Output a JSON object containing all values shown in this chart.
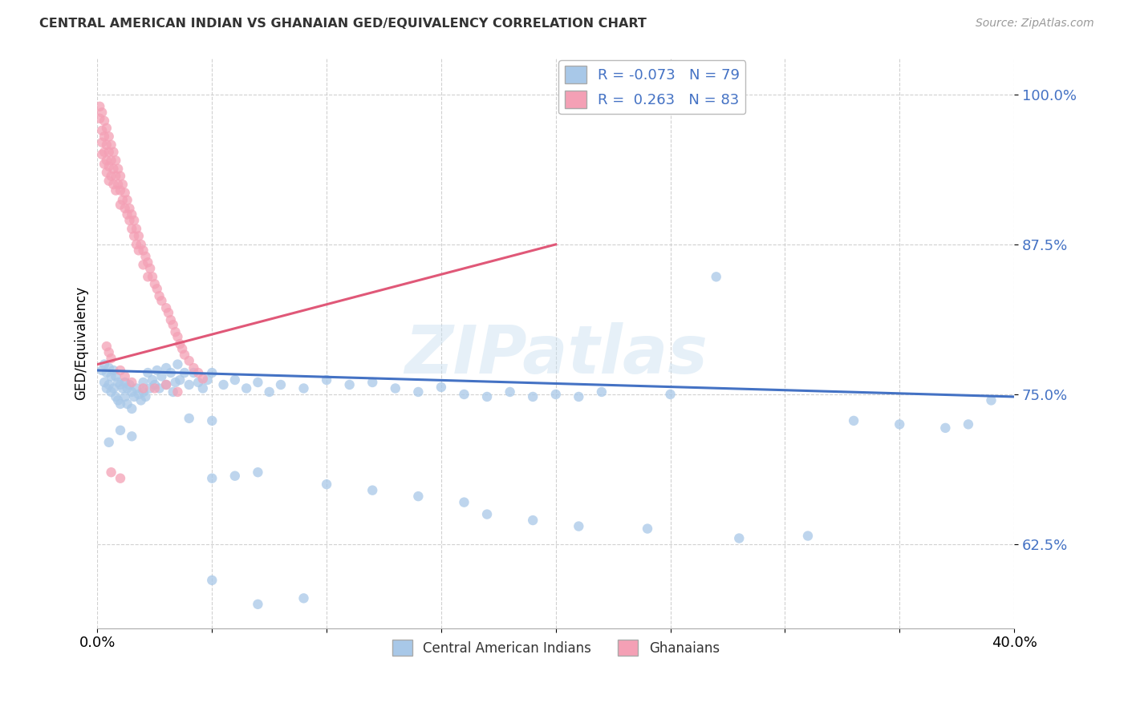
{
  "title": "CENTRAL AMERICAN INDIAN VS GHANAIAN GED/EQUIVALENCY CORRELATION CHART",
  "source": "Source: ZipAtlas.com",
  "ylabel": "GED/Equivalency",
  "xlim": [
    0.0,
    0.4
  ],
  "ylim": [
    0.555,
    1.03
  ],
  "yticks": [
    0.625,
    0.75,
    0.875,
    1.0
  ],
  "ytick_labels": [
    "62.5%",
    "75.0%",
    "87.5%",
    "100.0%"
  ],
  "xticks": [
    0.0,
    0.05,
    0.1,
    0.15,
    0.2,
    0.25,
    0.3,
    0.35,
    0.4
  ],
  "xtick_labels": [
    "0.0%",
    "",
    "",
    "",
    "",
    "",
    "",
    "",
    "40.0%"
  ],
  "blue_R": "-0.073",
  "blue_N": "79",
  "pink_R": "0.263",
  "pink_N": "83",
  "blue_color": "#A8C8E8",
  "pink_color": "#F4A0B5",
  "blue_line_color": "#4472C4",
  "pink_line_color": "#E05878",
  "watermark": "ZIPatlas",
  "legend_label_blue": "Central American Indians",
  "legend_label_pink": "Ghanaians",
  "blue_line_x": [
    0.0,
    0.4
  ],
  "blue_line_y": [
    0.77,
    0.748
  ],
  "pink_line_x": [
    0.0,
    0.2
  ],
  "pink_line_y": [
    0.775,
    0.875
  ],
  "blue_points": [
    [
      0.002,
      0.77
    ],
    [
      0.003,
      0.775
    ],
    [
      0.003,
      0.76
    ],
    [
      0.004,
      0.768
    ],
    [
      0.004,
      0.755
    ],
    [
      0.005,
      0.772
    ],
    [
      0.005,
      0.758
    ],
    [
      0.006,
      0.765
    ],
    [
      0.006,
      0.752
    ],
    [
      0.007,
      0.77
    ],
    [
      0.007,
      0.755
    ],
    [
      0.008,
      0.765
    ],
    [
      0.008,
      0.748
    ],
    [
      0.009,
      0.76
    ],
    [
      0.009,
      0.745
    ],
    [
      0.01,
      0.758
    ],
    [
      0.01,
      0.742
    ],
    [
      0.011,
      0.755
    ],
    [
      0.012,
      0.76
    ],
    [
      0.012,
      0.748
    ],
    [
      0.013,
      0.755
    ],
    [
      0.013,
      0.742
    ],
    [
      0.014,
      0.758
    ],
    [
      0.015,
      0.752
    ],
    [
      0.015,
      0.738
    ],
    [
      0.016,
      0.748
    ],
    [
      0.017,
      0.755
    ],
    [
      0.018,
      0.75
    ],
    [
      0.019,
      0.745
    ],
    [
      0.02,
      0.752
    ],
    [
      0.02,
      0.76
    ],
    [
      0.021,
      0.748
    ],
    [
      0.022,
      0.768
    ],
    [
      0.023,
      0.755
    ],
    [
      0.024,
      0.762
    ],
    [
      0.025,
      0.758
    ],
    [
      0.026,
      0.77
    ],
    [
      0.027,
      0.755
    ],
    [
      0.028,
      0.765
    ],
    [
      0.03,
      0.772
    ],
    [
      0.03,
      0.758
    ],
    [
      0.032,
      0.768
    ],
    [
      0.033,
      0.752
    ],
    [
      0.034,
      0.76
    ],
    [
      0.035,
      0.775
    ],
    [
      0.036,
      0.762
    ],
    [
      0.038,
      0.768
    ],
    [
      0.04,
      0.758
    ],
    [
      0.042,
      0.768
    ],
    [
      0.044,
      0.76
    ],
    [
      0.046,
      0.755
    ],
    [
      0.048,
      0.762
    ],
    [
      0.05,
      0.768
    ],
    [
      0.055,
      0.758
    ],
    [
      0.06,
      0.762
    ],
    [
      0.065,
      0.755
    ],
    [
      0.07,
      0.76
    ],
    [
      0.075,
      0.752
    ],
    [
      0.08,
      0.758
    ],
    [
      0.09,
      0.755
    ],
    [
      0.1,
      0.762
    ],
    [
      0.11,
      0.758
    ],
    [
      0.12,
      0.76
    ],
    [
      0.13,
      0.755
    ],
    [
      0.14,
      0.752
    ],
    [
      0.15,
      0.756
    ],
    [
      0.16,
      0.75
    ],
    [
      0.17,
      0.748
    ],
    [
      0.18,
      0.752
    ],
    [
      0.19,
      0.748
    ],
    [
      0.2,
      0.75
    ],
    [
      0.21,
      0.748
    ],
    [
      0.22,
      0.752
    ],
    [
      0.25,
      0.75
    ],
    [
      0.27,
      0.848
    ],
    [
      0.005,
      0.71
    ],
    [
      0.01,
      0.72
    ],
    [
      0.015,
      0.715
    ],
    [
      0.04,
      0.73
    ],
    [
      0.05,
      0.728
    ],
    [
      0.05,
      0.68
    ],
    [
      0.06,
      0.682
    ],
    [
      0.07,
      0.685
    ],
    [
      0.1,
      0.675
    ],
    [
      0.12,
      0.67
    ],
    [
      0.14,
      0.665
    ],
    [
      0.16,
      0.66
    ],
    [
      0.17,
      0.65
    ],
    [
      0.19,
      0.645
    ],
    [
      0.21,
      0.64
    ],
    [
      0.24,
      0.638
    ],
    [
      0.28,
      0.63
    ],
    [
      0.31,
      0.632
    ],
    [
      0.33,
      0.728
    ],
    [
      0.35,
      0.725
    ],
    [
      0.37,
      0.722
    ],
    [
      0.38,
      0.725
    ],
    [
      0.39,
      0.745
    ],
    [
      0.05,
      0.595
    ],
    [
      0.07,
      0.575
    ],
    [
      0.09,
      0.58
    ]
  ],
  "pink_points": [
    [
      0.001,
      0.98
    ],
    [
      0.001,
      0.99
    ],
    [
      0.002,
      0.985
    ],
    [
      0.002,
      0.97
    ],
    [
      0.002,
      0.96
    ],
    [
      0.002,
      0.95
    ],
    [
      0.003,
      0.978
    ],
    [
      0.003,
      0.965
    ],
    [
      0.003,
      0.952
    ],
    [
      0.003,
      0.942
    ],
    [
      0.004,
      0.972
    ],
    [
      0.004,
      0.958
    ],
    [
      0.004,
      0.945
    ],
    [
      0.004,
      0.935
    ],
    [
      0.005,
      0.965
    ],
    [
      0.005,
      0.952
    ],
    [
      0.005,
      0.94
    ],
    [
      0.005,
      0.928
    ],
    [
      0.006,
      0.958
    ],
    [
      0.006,
      0.945
    ],
    [
      0.006,
      0.932
    ],
    [
      0.007,
      0.952
    ],
    [
      0.007,
      0.938
    ],
    [
      0.007,
      0.925
    ],
    [
      0.008,
      0.945
    ],
    [
      0.008,
      0.932
    ],
    [
      0.008,
      0.92
    ],
    [
      0.009,
      0.938
    ],
    [
      0.009,
      0.925
    ],
    [
      0.01,
      0.932
    ],
    [
      0.01,
      0.92
    ],
    [
      0.01,
      0.908
    ],
    [
      0.011,
      0.925
    ],
    [
      0.011,
      0.912
    ],
    [
      0.012,
      0.918
    ],
    [
      0.012,
      0.905
    ],
    [
      0.013,
      0.912
    ],
    [
      0.013,
      0.9
    ],
    [
      0.014,
      0.905
    ],
    [
      0.014,
      0.895
    ],
    [
      0.015,
      0.9
    ],
    [
      0.015,
      0.888
    ],
    [
      0.016,
      0.895
    ],
    [
      0.016,
      0.882
    ],
    [
      0.017,
      0.888
    ],
    [
      0.017,
      0.875
    ],
    [
      0.018,
      0.882
    ],
    [
      0.018,
      0.87
    ],
    [
      0.019,
      0.875
    ],
    [
      0.02,
      0.87
    ],
    [
      0.02,
      0.858
    ],
    [
      0.021,
      0.865
    ],
    [
      0.022,
      0.86
    ],
    [
      0.022,
      0.848
    ],
    [
      0.023,
      0.855
    ],
    [
      0.024,
      0.848
    ],
    [
      0.025,
      0.842
    ],
    [
      0.026,
      0.838
    ],
    [
      0.027,
      0.832
    ],
    [
      0.028,
      0.828
    ],
    [
      0.03,
      0.822
    ],
    [
      0.031,
      0.818
    ],
    [
      0.032,
      0.812
    ],
    [
      0.033,
      0.808
    ],
    [
      0.034,
      0.802
    ],
    [
      0.035,
      0.798
    ],
    [
      0.036,
      0.792
    ],
    [
      0.037,
      0.788
    ],
    [
      0.038,
      0.783
    ],
    [
      0.04,
      0.778
    ],
    [
      0.042,
      0.772
    ],
    [
      0.044,
      0.768
    ],
    [
      0.046,
      0.763
    ],
    [
      0.004,
      0.79
    ],
    [
      0.005,
      0.785
    ],
    [
      0.006,
      0.78
    ],
    [
      0.01,
      0.77
    ],
    [
      0.012,
      0.765
    ],
    [
      0.015,
      0.76
    ],
    [
      0.02,
      0.755
    ],
    [
      0.025,
      0.755
    ],
    [
      0.03,
      0.758
    ],
    [
      0.035,
      0.752
    ],
    [
      0.006,
      0.685
    ],
    [
      0.01,
      0.68
    ]
  ]
}
